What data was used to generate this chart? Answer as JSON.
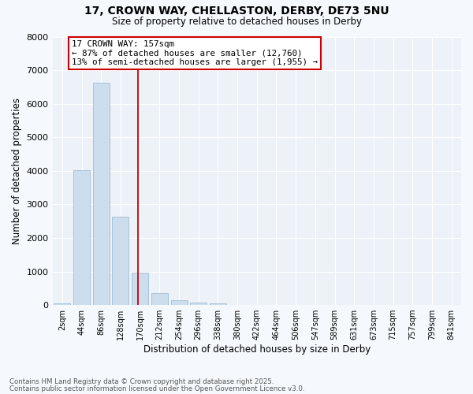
{
  "title_line1": "17, CROWN WAY, CHELLASTON, DERBY, DE73 5NU",
  "title_line2": "Size of property relative to detached houses in Derby",
  "xlabel": "Distribution of detached houses by size in Derby",
  "ylabel": "Number of detached properties",
  "bar_labels": [
    "2sqm",
    "44sqm",
    "86sqm",
    "128sqm",
    "170sqm",
    "212sqm",
    "254sqm",
    "296sqm",
    "338sqm",
    "380sqm",
    "422sqm",
    "464sqm",
    "506sqm",
    "547sqm",
    "589sqm",
    "631sqm",
    "673sqm",
    "715sqm",
    "757sqm",
    "799sqm",
    "841sqm"
  ],
  "bar_values": [
    60,
    4020,
    6620,
    2640,
    960,
    360,
    140,
    80,
    50,
    0,
    0,
    0,
    0,
    0,
    0,
    0,
    0,
    0,
    0,
    0,
    0
  ],
  "bar_color": "#ccdded",
  "bar_edgecolor": "#a0bcd4",
  "ylim": [
    0,
    8000
  ],
  "yticks": [
    0,
    1000,
    2000,
    3000,
    4000,
    5000,
    6000,
    7000,
    8000
  ],
  "property_line_x": 3.88,
  "property_label": "17 CROWN WAY: 157sqm",
  "annotation_line1": "← 87% of detached houses are smaller (12,760)",
  "annotation_line2": "13% of semi-detached houses are larger (1,955) →",
  "vline_color": "#cc0000",
  "annotation_box_edgecolor": "#cc0000",
  "footer_line1": "Contains HM Land Registry data © Crown copyright and database right 2025.",
  "footer_line2": "Contains public sector information licensed under the Open Government Licence v3.0.",
  "fig_facecolor": "#f5f8fc",
  "ax_facecolor": "#edf2f8",
  "grid_color": "#ffffff",
  "font_family": "DejaVu Sans"
}
